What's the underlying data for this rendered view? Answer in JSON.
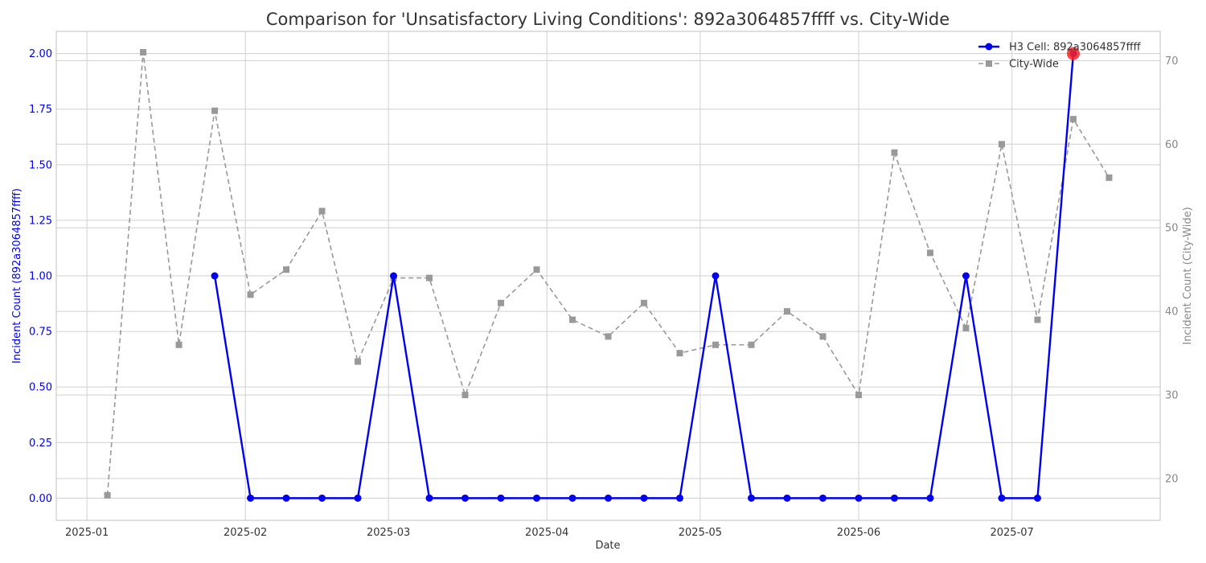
{
  "chart_data": {
    "type": "line",
    "title": "Comparison for 'Unsatisfactory Living Conditions': 892a3064857ffff vs. City-Wide",
    "xlabel": "Date",
    "ylabel_left": "Incident Count (892a3064857ffff)",
    "ylabel_right": "Incident Count (City-Wide)",
    "x_ticks": [
      "2025-01",
      "2025-02",
      "2025-03",
      "2025-04",
      "2025-05",
      "2025-06",
      "2025-07"
    ],
    "y_left_ticks": [
      "0.00",
      "0.25",
      "0.50",
      "0.75",
      "1.00",
      "1.25",
      "1.50",
      "1.75",
      "2.00"
    ],
    "y_right_ticks": [
      "20",
      "30",
      "40",
      "50",
      "60",
      "70"
    ],
    "ylim_left": [
      -0.1,
      2.1
    ],
    "ylim_right": [
      15,
      73.5
    ],
    "grid": true,
    "legend_position": "top-right",
    "series": [
      {
        "name": "H3 Cell: 892a3064857ffff",
        "axis": "left",
        "color": "#0000ee",
        "marker": "circle",
        "line_style": "solid",
        "points": [
          [
            "2025-01-26",
            1
          ],
          [
            "2025-02-02",
            0
          ],
          [
            "2025-02-09",
            0
          ],
          [
            "2025-02-16",
            0
          ],
          [
            "2025-02-23",
            0
          ],
          [
            "2025-03-02",
            1
          ],
          [
            "2025-03-09",
            0
          ],
          [
            "2025-03-16",
            0
          ],
          [
            "2025-03-23",
            0
          ],
          [
            "2025-03-30",
            0
          ],
          [
            "2025-04-06",
            0
          ],
          [
            "2025-04-13",
            0
          ],
          [
            "2025-04-20",
            0
          ],
          [
            "2025-04-27",
            0
          ],
          [
            "2025-05-04",
            1
          ],
          [
            "2025-05-11",
            0
          ],
          [
            "2025-05-18",
            0
          ],
          [
            "2025-05-25",
            0
          ],
          [
            "2025-06-01",
            0
          ],
          [
            "2025-06-08",
            0
          ],
          [
            "2025-06-15",
            0
          ],
          [
            "2025-06-22",
            1
          ],
          [
            "2025-06-29",
            0
          ],
          [
            "2025-07-06",
            0
          ],
          [
            "2025-07-13",
            2
          ]
        ]
      },
      {
        "name": "City-Wide",
        "axis": "right",
        "color": "#999999",
        "marker": "square",
        "line_style": "dashed",
        "points": [
          [
            "2025-01-05",
            18
          ],
          [
            "2025-01-12",
            71
          ],
          [
            "2025-01-19",
            36
          ],
          [
            "2025-01-26",
            64
          ],
          [
            "2025-02-02",
            42
          ],
          [
            "2025-02-09",
            45
          ],
          [
            "2025-02-16",
            52
          ],
          [
            "2025-02-23",
            34
          ],
          [
            "2025-03-02",
            44
          ],
          [
            "2025-03-09",
            44
          ],
          [
            "2025-03-16",
            30
          ],
          [
            "2025-03-23",
            41
          ],
          [
            "2025-03-30",
            45
          ],
          [
            "2025-04-06",
            39
          ],
          [
            "2025-04-13",
            37
          ],
          [
            "2025-04-20",
            41
          ],
          [
            "2025-04-27",
            35
          ],
          [
            "2025-05-04",
            36
          ],
          [
            "2025-05-11",
            36
          ],
          [
            "2025-05-18",
            40
          ],
          [
            "2025-05-25",
            37
          ],
          [
            "2025-06-01",
            30
          ],
          [
            "2025-06-08",
            59
          ],
          [
            "2025-06-15",
            47
          ],
          [
            "2025-06-22",
            38
          ],
          [
            "2025-06-29",
            60
          ],
          [
            "2025-07-06",
            39
          ],
          [
            "2025-07-13",
            63
          ],
          [
            "2025-07-20",
            56
          ]
        ]
      }
    ],
    "highlight": {
      "date": "2025-07-13",
      "value": 2,
      "color": "#ff2222"
    }
  }
}
